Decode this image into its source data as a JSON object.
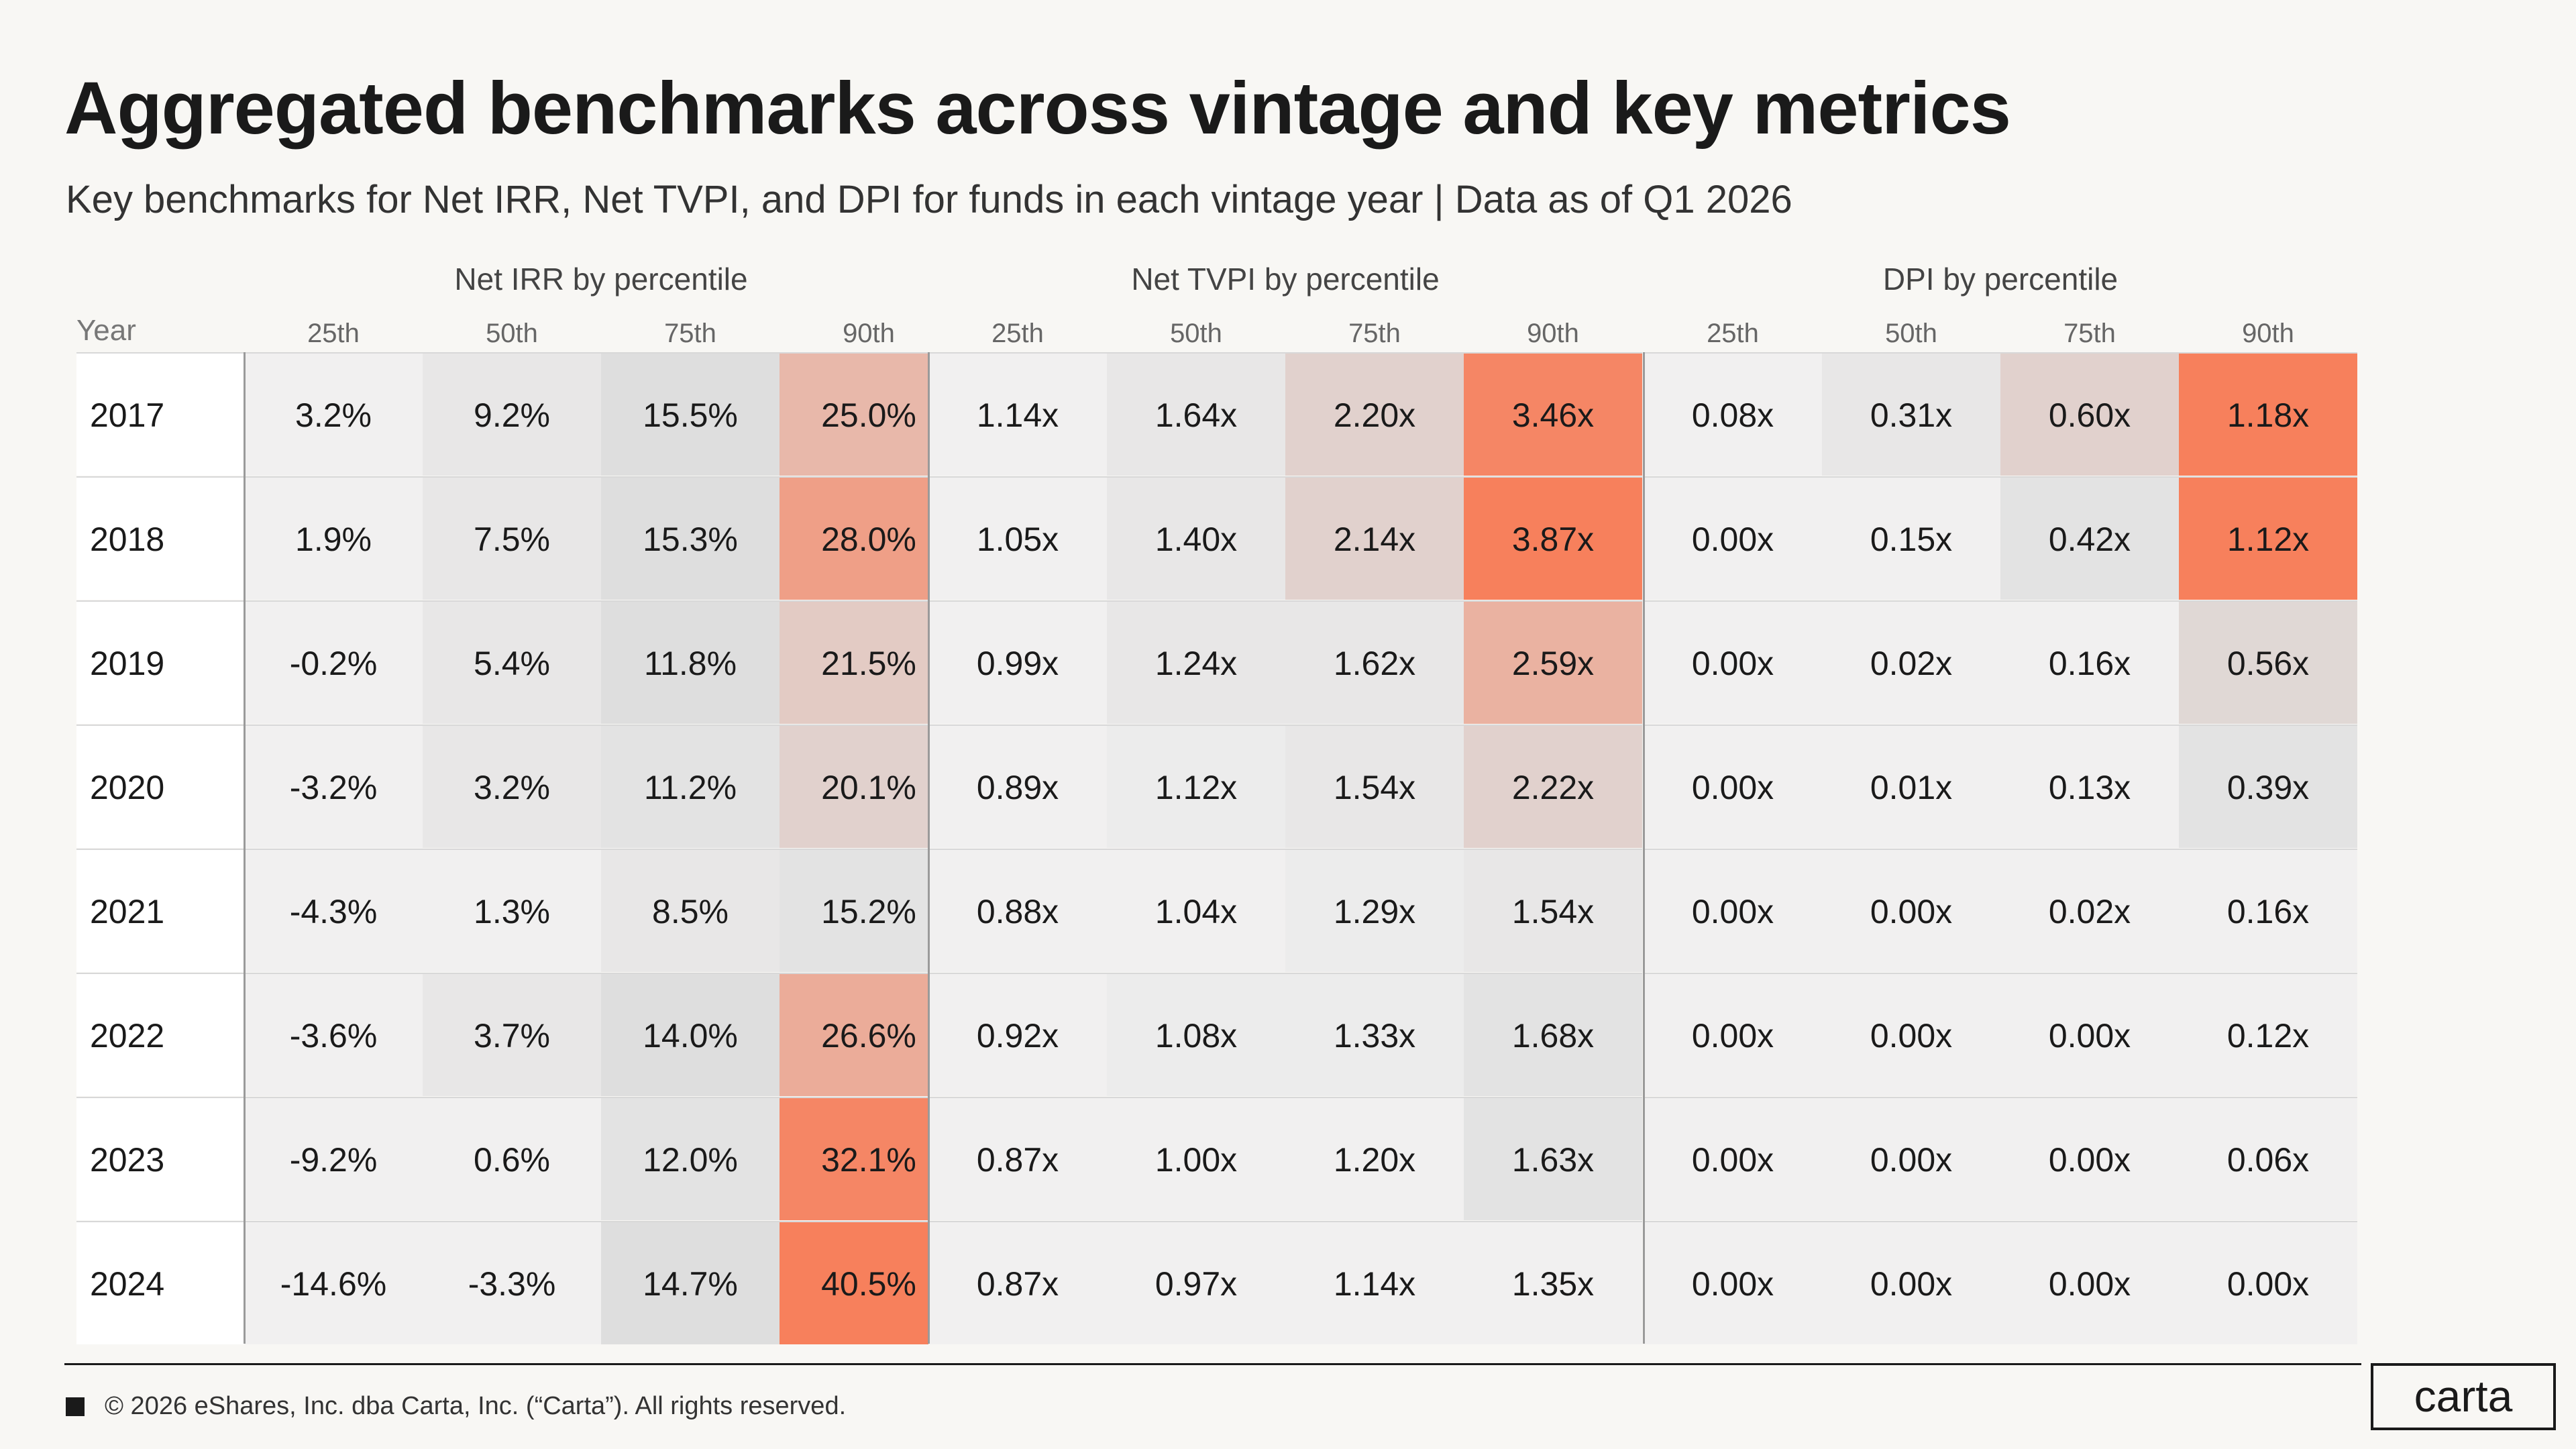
{
  "title": "Aggregated benchmarks across vintage and key metrics",
  "subtitle": "Key benchmarks for Net IRR, Net TVPI, and DPI for funds in each vintage year | Data as of Q1 2026",
  "footer": {
    "copyright": "© 2026 eShares, Inc. dba Carta, Inc. (“Carta”). All rights reserved.",
    "logo": "carta"
  },
  "colors": {
    "accent": "#f7805c",
    "neutral": "#dcdcdc",
    "light": "#f5f4f4"
  },
  "chart_data": {
    "type": "table",
    "year_label": "Year",
    "groups": [
      {
        "title": "Net IRR by percentile",
        "columns": [
          "25th",
          "50th",
          "75th",
          "90th"
        ]
      },
      {
        "title": "Net TVPI by percentile",
        "columns": [
          "25th",
          "50th",
          "75th",
          "90th"
        ]
      },
      {
        "title": "DPI by percentile",
        "columns": [
          "25th",
          "50th",
          "75th",
          "90th"
        ]
      }
    ],
    "rows": [
      {
        "year": "2017",
        "values": [
          "3.2%",
          "9.2%",
          "15.5%",
          "25.0%",
          "1.14x",
          "1.64x",
          "2.20x",
          "3.46x",
          "0.08x",
          "0.31x",
          "0.60x",
          "1.18x"
        ]
      },
      {
        "year": "2018",
        "values": [
          "1.9%",
          "7.5%",
          "15.3%",
          "28.0%",
          "1.05x",
          "1.40x",
          "2.14x",
          "3.87x",
          "0.00x",
          "0.15x",
          "0.42x",
          "1.12x"
        ]
      },
      {
        "year": "2019",
        "values": [
          "-0.2%",
          "5.4%",
          "11.8%",
          "21.5%",
          "0.99x",
          "1.24x",
          "1.62x",
          "2.59x",
          "0.00x",
          "0.02x",
          "0.16x",
          "0.56x"
        ]
      },
      {
        "year": "2020",
        "values": [
          "-3.2%",
          "3.2%",
          "11.2%",
          "20.1%",
          "0.89x",
          "1.12x",
          "1.54x",
          "2.22x",
          "0.00x",
          "0.01x",
          "0.13x",
          "0.39x"
        ]
      },
      {
        "year": "2021",
        "values": [
          "-4.3%",
          "1.3%",
          "8.5%",
          "15.2%",
          "0.88x",
          "1.04x",
          "1.29x",
          "1.54x",
          "0.00x",
          "0.00x",
          "0.02x",
          "0.16x"
        ]
      },
      {
        "year": "2022",
        "values": [
          "-3.6%",
          "3.7%",
          "14.0%",
          "26.6%",
          "0.92x",
          "1.08x",
          "1.33x",
          "1.68x",
          "0.00x",
          "0.00x",
          "0.00x",
          "0.12x"
        ]
      },
      {
        "year": "2023",
        "values": [
          "-9.2%",
          "0.6%",
          "12.0%",
          "32.1%",
          "0.87x",
          "1.00x",
          "1.20x",
          "1.63x",
          "0.00x",
          "0.00x",
          "0.00x",
          "0.06x"
        ]
      },
      {
        "year": "2024",
        "values": [
          "-14.6%",
          "-3.3%",
          "14.7%",
          "40.5%",
          "0.87x",
          "0.97x",
          "1.14x",
          "1.35x",
          "0.00x",
          "0.00x",
          "0.00x",
          "0.00x"
        ]
      }
    ],
    "heat_levels": [
      [
        0.05,
        0.15,
        0.25,
        0.55,
        0.05,
        0.15,
        0.35,
        0.95,
        0.05,
        0.15,
        0.35,
        1.0
      ],
      [
        0.05,
        0.15,
        0.25,
        0.75,
        0.05,
        0.15,
        0.35,
        1.0,
        0.05,
        0.05,
        0.2,
        1.0
      ],
      [
        0.05,
        0.15,
        0.25,
        0.4,
        0.05,
        0.15,
        0.15,
        0.6,
        0.05,
        0.05,
        0.05,
        0.3
      ],
      [
        0.05,
        0.15,
        0.2,
        0.35,
        0.05,
        0.1,
        0.15,
        0.35,
        0.05,
        0.05,
        0.05,
        0.2
      ],
      [
        0.05,
        0.05,
        0.15,
        0.2,
        0.05,
        0.05,
        0.1,
        0.15,
        0.05,
        0.05,
        0.05,
        0.05
      ],
      [
        0.05,
        0.15,
        0.25,
        0.65,
        0.05,
        0.1,
        0.1,
        0.2,
        0.05,
        0.05,
        0.05,
        0.05
      ],
      [
        0.05,
        0.05,
        0.2,
        0.95,
        0.05,
        0.05,
        0.05,
        0.2,
        0.05,
        0.05,
        0.05,
        0.05
      ],
      [
        0.05,
        0.05,
        0.25,
        1.0,
        0.05,
        0.05,
        0.05,
        0.05,
        0.05,
        0.05,
        0.05,
        0.05
      ]
    ]
  }
}
